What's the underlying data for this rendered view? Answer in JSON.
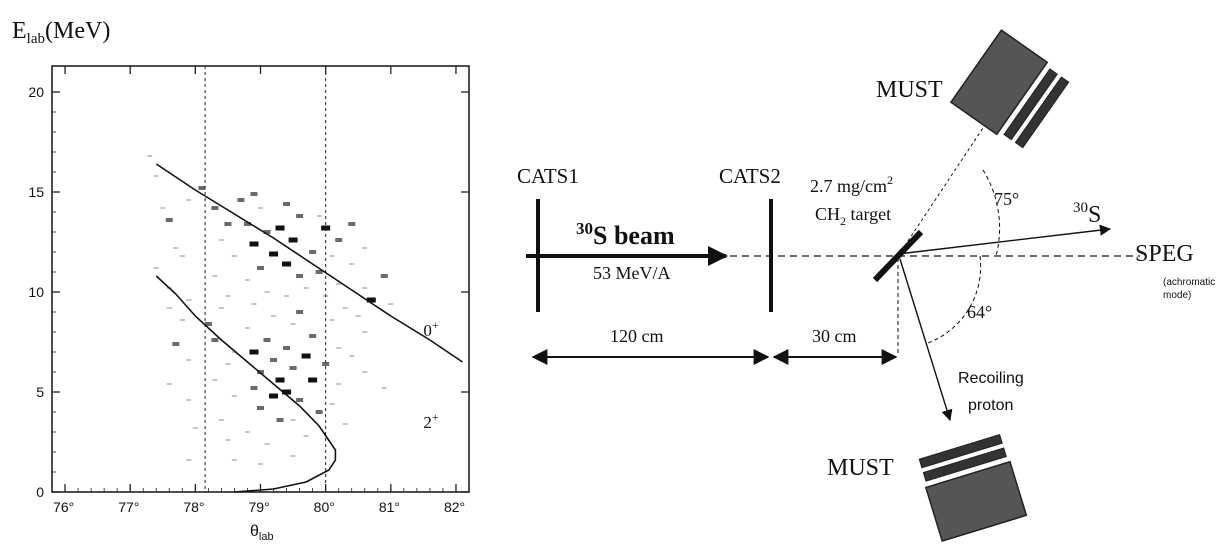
{
  "chart_data": {
    "type": "scatter",
    "ylabel_main": "E",
    "ylabel_sub": "lab",
    "ylabel_unit": "(MeV)",
    "xlabel_main": "θ",
    "xlabel_sub": "lab",
    "xlim": [
      75.8,
      82.2
    ],
    "ylim": [
      0,
      21.3
    ],
    "x_ticks": [
      {
        "value": 76,
        "label": "76°"
      },
      {
        "value": 77,
        "label": "77°"
      },
      {
        "value": 78,
        "label": "78°"
      },
      {
        "value": 79,
        "label": "79°"
      },
      {
        "value": 80,
        "label": "80°"
      },
      {
        "value": 81,
        "label": "81°"
      },
      {
        "value": 82,
        "label": "82°"
      }
    ],
    "y_ticks": [
      {
        "value": 0,
        "label": "0"
      },
      {
        "value": 5,
        "label": "5"
      },
      {
        "value": 10,
        "label": "10"
      },
      {
        "value": 15,
        "label": "15"
      },
      {
        "value": 20,
        "label": "20"
      }
    ],
    "cut_lines_x": [
      78.15,
      80.0
    ],
    "curves": [
      {
        "name": "0+",
        "label_main": "0",
        "label_sup": "+",
        "label_at": [
          81.5,
          7.8
        ],
        "points": [
          [
            77.4,
            16.4
          ],
          [
            78.0,
            15.1
          ],
          [
            78.6,
            13.9
          ],
          [
            79.2,
            12.7
          ],
          [
            79.8,
            11.4
          ],
          [
            80.4,
            10.1
          ],
          [
            81.0,
            8.8
          ],
          [
            81.6,
            7.6
          ],
          [
            82.1,
            6.5
          ]
        ]
      },
      {
        "name": "2+",
        "label_main": "2",
        "label_sup": "+",
        "label_at": [
          81.5,
          3.2
        ],
        "points": [
          [
            77.4,
            10.8
          ],
          [
            77.7,
            9.9
          ],
          [
            78.0,
            8.8
          ],
          [
            78.4,
            7.6
          ],
          [
            78.8,
            6.5
          ],
          [
            79.2,
            5.4
          ],
          [
            79.6,
            4.3
          ],
          [
            79.9,
            3.3
          ],
          [
            80.15,
            2.1
          ],
          [
            80.15,
            1.6
          ],
          [
            80.05,
            1.1
          ],
          [
            79.7,
            0.5
          ],
          [
            79.2,
            0.15
          ],
          [
            78.6,
            0.0
          ]
        ]
      }
    ],
    "events": [
      [
        77.3,
        16.8,
        1
      ],
      [
        77.4,
        15.8,
        1
      ],
      [
        77.5,
        14.2,
        1
      ],
      [
        77.6,
        13.6,
        2
      ],
      [
        77.9,
        14.6,
        1
      ],
      [
        77.7,
        12.2,
        1
      ],
      [
        77.8,
        11.8,
        1
      ],
      [
        77.4,
        11.2,
        1
      ],
      [
        77.6,
        10.2,
        1
      ],
      [
        77.9,
        9.6,
        1
      ],
      [
        77.6,
        9.2,
        1
      ],
      [
        77.8,
        8.6,
        1
      ],
      [
        77.7,
        7.4,
        2
      ],
      [
        77.9,
        6.6,
        1
      ],
      [
        77.6,
        5.4,
        1
      ],
      [
        77.9,
        4.6,
        1
      ],
      [
        78.0,
        3.2,
        1
      ],
      [
        77.9,
        1.6,
        1
      ],
      [
        78.1,
        15.2,
        2
      ],
      [
        78.3,
        14.2,
        2
      ],
      [
        78.5,
        13.4,
        2
      ],
      [
        78.4,
        12.6,
        1
      ],
      [
        78.6,
        11.8,
        1
      ],
      [
        78.3,
        10.8,
        1
      ],
      [
        78.5,
        9.8,
        1
      ],
      [
        78.4,
        9.2,
        1
      ],
      [
        78.2,
        8.4,
        2
      ],
      [
        78.3,
        7.6,
        2
      ],
      [
        78.6,
        7.0,
        1
      ],
      [
        78.5,
        6.4,
        1
      ],
      [
        78.3,
        5.6,
        1
      ],
      [
        78.6,
        4.8,
        1
      ],
      [
        78.4,
        3.6,
        1
      ],
      [
        78.5,
        2.6,
        1
      ],
      [
        78.6,
        1.6,
        1
      ],
      [
        78.7,
        14.6,
        2
      ],
      [
        78.9,
        14.9,
        2
      ],
      [
        79.0,
        14.2,
        1
      ],
      [
        78.8,
        13.4,
        2
      ],
      [
        79.1,
        13.0,
        2
      ],
      [
        78.9,
        12.4,
        3
      ],
      [
        79.2,
        11.9,
        3
      ],
      [
        79.0,
        11.2,
        2
      ],
      [
        78.8,
        10.6,
        1
      ],
      [
        79.1,
        10.0,
        1
      ],
      [
        78.9,
        9.4,
        1
      ],
      [
        79.2,
        8.8,
        1
      ],
      [
        78.8,
        8.2,
        1
      ],
      [
        79.1,
        7.6,
        2
      ],
      [
        78.9,
        7.0,
        3
      ],
      [
        79.2,
        6.6,
        2
      ],
      [
        79.0,
        6.0,
        2
      ],
      [
        79.3,
        5.6,
        3
      ],
      [
        78.9,
        5.2,
        2
      ],
      [
        79.2,
        4.8,
        3
      ],
      [
        79.0,
        4.2,
        2
      ],
      [
        79.3,
        3.6,
        2
      ],
      [
        78.8,
        3.0,
        1
      ],
      [
        79.1,
        2.4,
        1
      ],
      [
        79.0,
        1.4,
        1
      ],
      [
        79.4,
        14.4,
        2
      ],
      [
        79.6,
        13.8,
        2
      ],
      [
        79.3,
        13.2,
        3
      ],
      [
        79.5,
        12.6,
        3
      ],
      [
        79.8,
        12.0,
        2
      ],
      [
        79.4,
        11.4,
        3
      ],
      [
        79.6,
        10.8,
        2
      ],
      [
        79.7,
        10.2,
        1
      ],
      [
        79.4,
        9.8,
        1
      ],
      [
        79.6,
        9.0,
        2
      ],
      [
        79.5,
        8.4,
        1
      ],
      [
        79.8,
        7.8,
        2
      ],
      [
        79.4,
        7.2,
        2
      ],
      [
        79.7,
        6.8,
        3
      ],
      [
        79.5,
        6.2,
        2
      ],
      [
        79.8,
        5.6,
        3
      ],
      [
        79.4,
        5.0,
        3
      ],
      [
        79.6,
        4.6,
        2
      ],
      [
        79.9,
        4.0,
        2
      ],
      [
        79.5,
        3.6,
        1
      ],
      [
        79.7,
        2.8,
        1
      ],
      [
        79.5,
        1.8,
        1
      ],
      [
        79.9,
        13.8,
        1
      ],
      [
        80.0,
        13.2,
        3
      ],
      [
        80.2,
        12.6,
        2
      ],
      [
        80.1,
        11.8,
        1
      ],
      [
        79.9,
        11.0,
        2
      ],
      [
        80.2,
        10.4,
        1
      ],
      [
        80.0,
        9.8,
        1
      ],
      [
        80.3,
        9.2,
        1
      ],
      [
        80.1,
        8.6,
        1
      ],
      [
        80.2,
        7.2,
        1
      ],
      [
        80.0,
        6.4,
        2
      ],
      [
        80.2,
        5.4,
        1
      ],
      [
        80.1,
        4.4,
        1
      ],
      [
        80.3,
        3.4,
        1
      ],
      [
        80.4,
        13.4,
        2
      ],
      [
        80.6,
        12.2,
        1
      ],
      [
        80.4,
        11.4,
        1
      ],
      [
        80.6,
        10.2,
        1
      ],
      [
        80.7,
        9.6,
        3
      ],
      [
        80.5,
        8.8,
        1
      ],
      [
        80.6,
        8.0,
        1
      ],
      [
        80.4,
        6.8,
        1
      ],
      [
        80.6,
        6.0,
        1
      ],
      [
        80.9,
        10.8,
        2
      ],
      [
        81.0,
        9.4,
        1
      ],
      [
        80.9,
        5.2,
        1
      ]
    ]
  },
  "diagram": {
    "cats1_label": "CATS1",
    "cats2_label": "CATS2",
    "beam_mass": "30",
    "beam_label": "S beam",
    "beam_energy": "53 MeV/A",
    "target_line1": "2.7 mg/cm",
    "target_line1_sup": "2",
    "target_line2_a": "CH",
    "target_line2_sub": "2",
    "target_line2_b": " target",
    "must_top": "MUST",
    "must_bottom": "MUST",
    "angle_top": "75°",
    "angle_bottom": "64°",
    "ejectile_mass": "30",
    "ejectile_label": "S",
    "speg_label": "SPEG",
    "speg_note_line1": "(achromatic",
    "speg_note_line2": "mode)",
    "dist1": "120 cm",
    "dist2": "30 cm",
    "recoil_line1": "Recoiling",
    "recoil_line2": "proton",
    "colors": {
      "detector_fill": "#555555",
      "detector_edge": "#222222",
      "ink": "#111111"
    }
  }
}
